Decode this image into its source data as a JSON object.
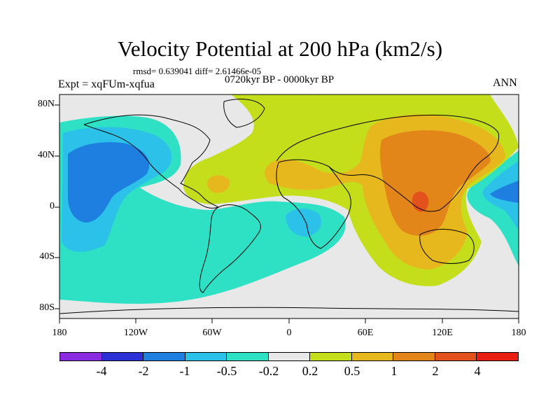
{
  "title": "Velocity Potential at 200 hPa (km2/s)",
  "stats": "rmsd= 0.639041  diff= 2.61466e-05",
  "period": "0720kyr BP - 0000kyr BP",
  "experiment": "Expt = xqFUm-xqfua",
  "season": "ANN",
  "lat_labels": [
    "80N",
    "40N",
    "0",
    "40S",
    "80S"
  ],
  "lon_labels": [
    "180",
    "120W",
    "60W",
    "0",
    "60E",
    "120E",
    "180"
  ],
  "colorbar": {
    "labels": [
      "-4",
      "-2",
      "-1",
      "-0.5",
      "-0.2",
      "0.2",
      "0.5",
      "1",
      "2",
      "4"
    ],
    "colors": [
      "#8a2be2",
      "#2b2fd6",
      "#1e7fe0",
      "#2cc1e8",
      "#2ee0c4",
      "#e8e8e8",
      "#c5de1c",
      "#e7b81e",
      "#e2861a",
      "#e3511c",
      "#e81f10"
    ]
  },
  "colors": {
    "neutral": "#e8e8e8",
    "negative_weak": "#2ee0c4",
    "negative_mid": "#2cc1e8",
    "negative_strong": "#1e7fe0",
    "positive_weak": "#c5de1c",
    "positive_mid": "#e7b81e",
    "positive_strong": "#e2861a",
    "positive_max": "#e3511c"
  }
}
